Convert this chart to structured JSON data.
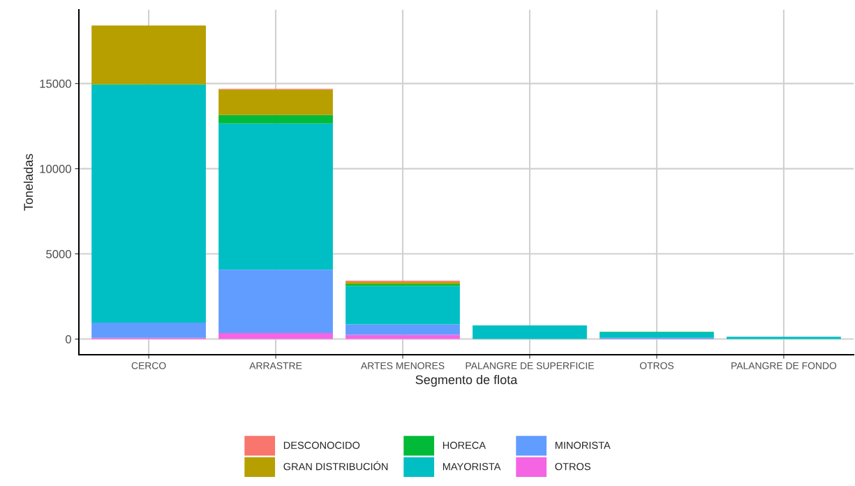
{
  "chart_data": {
    "type": "bar",
    "stacked": true,
    "xlabel": "Segmento de flota",
    "ylabel": "Toneladas",
    "categories": [
      "CERCO",
      "ARRASTRE",
      "ARTES MENORES",
      "PALANGRE DE SUPERFICIE",
      "OTROS",
      "PALANGRE DE FONDO"
    ],
    "series": [
      {
        "name": "OTROS",
        "color": "#f564e3",
        "values": [
          70,
          350,
          250,
          null,
          10,
          null
        ]
      },
      {
        "name": "MINORISTA",
        "color": "#619cff",
        "values": [
          900,
          3720,
          610,
          0,
          60,
          0
        ]
      },
      {
        "name": "MAYORISTA",
        "color": "#00bfc4",
        "values": [
          13940,
          8590,
          2260,
          800,
          320,
          140
        ]
      },
      {
        "name": "HORECA",
        "color": "#00ba38",
        "values": [
          50,
          490,
          100,
          0,
          30,
          0
        ]
      },
      {
        "name": "GRAN DISTRIBUCIÓN",
        "color": "#b79f00",
        "values": [
          3450,
          1500,
          130,
          0,
          0,
          0
        ]
      },
      {
        "name": "DESCONOCIDO",
        "color": "#f8766d",
        "values": [
          0,
          40,
          80,
          0,
          0,
          0
        ]
      }
    ],
    "ylim": [
      -920,
      19330
    ],
    "yticks": [
      0,
      5000,
      10000,
      15000
    ],
    "grid": true,
    "legend": "bottom"
  }
}
